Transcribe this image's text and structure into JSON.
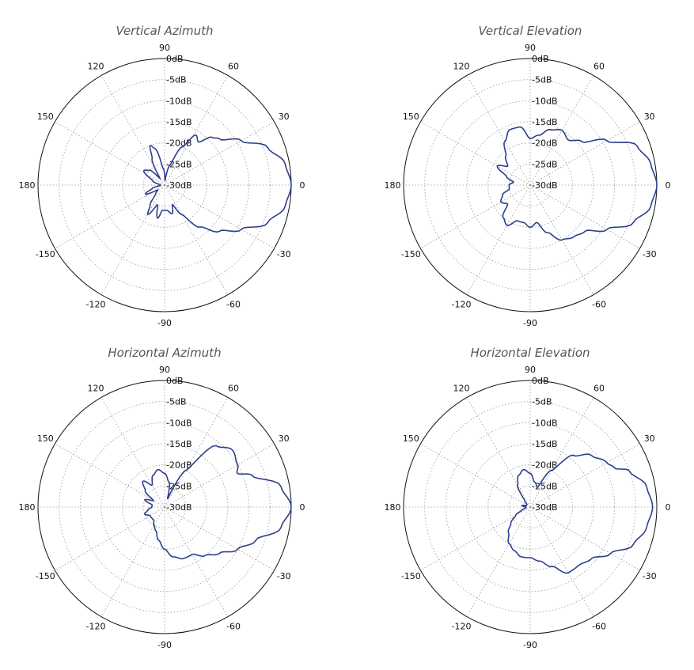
{
  "chart_data": [
    {
      "type": "polar",
      "title": "Vertical Azimuth",
      "angular_ticks": [
        "90",
        "60",
        "30",
        "0",
        "-30",
        "-60",
        "-90",
        "-120",
        "-150",
        "180",
        "150",
        "120"
      ],
      "radial_ticks": [
        "0dB",
        "-5dB",
        "-10dB",
        "-15dB",
        "-20dB",
        "-25dB",
        "-30dB"
      ],
      "rlim": [
        -30,
        0
      ],
      "grid": true,
      "series_color": "#2e3e8c",
      "pattern": [
        [
          0,
          0
        ],
        [
          10,
          -1
        ],
        [
          20,
          -4
        ],
        [
          30,
          -9
        ],
        [
          40,
          -13
        ],
        [
          45,
          -14
        ],
        [
          52,
          -17
        ],
        [
          58,
          -16
        ],
        [
          65,
          -20
        ],
        [
          75,
          -25
        ],
        [
          85,
          -29
        ],
        [
          95,
          -26
        ],
        [
          105,
          -21
        ],
        [
          110,
          -20
        ],
        [
          115,
          -23
        ],
        [
          125,
          -28
        ],
        [
          135,
          -25
        ],
        [
          145,
          -24
        ],
        [
          160,
          -27
        ],
        [
          175,
          -29
        ],
        [
          185,
          -29
        ],
        [
          195,
          -27
        ],
        [
          205,
          -25
        ],
        [
          215,
          -28
        ],
        [
          225,
          -27
        ],
        [
          235,
          -24
        ],
        [
          240,
          -22
        ],
        [
          250,
          -25
        ],
        [
          258,
          -22
        ],
        [
          265,
          -24
        ],
        [
          275,
          -24
        ],
        [
          285,
          -23
        ],
        [
          292,
          -25
        ],
        [
          300,
          -22
        ],
        [
          310,
          -17
        ],
        [
          320,
          -13
        ],
        [
          330,
          -9
        ],
        [
          340,
          -4
        ],
        [
          350,
          -1
        ],
        [
          360,
          0
        ]
      ]
    },
    {
      "type": "polar",
      "title": "Vertical Elevation",
      "angular_ticks": [
        "90",
        "60",
        "30",
        "0",
        "-30",
        "-60",
        "-90",
        "-120",
        "-150",
        "180",
        "150",
        "120"
      ],
      "radial_ticks": [
        "0dB",
        "-5dB",
        "-10dB",
        "-15dB",
        "-20dB",
        "-25dB",
        "-30dB"
      ],
      "rlim": [
        -30,
        0
      ],
      "grid": true,
      "series_color": "#2e3e8c",
      "pattern": [
        [
          0,
          0
        ],
        [
          10,
          -1
        ],
        [
          20,
          -3
        ],
        [
          30,
          -9
        ],
        [
          40,
          -14
        ],
        [
          50,
          -16
        ],
        [
          60,
          -15
        ],
        [
          70,
          -16
        ],
        [
          80,
          -18
        ],
        [
          90,
          -19
        ],
        [
          100,
          -16
        ],
        [
          110,
          -16
        ],
        [
          120,
          -18
        ],
        [
          130,
          -21
        ],
        [
          140,
          -23
        ],
        [
          150,
          -21
        ],
        [
          160,
          -24
        ],
        [
          170,
          -26
        ],
        [
          180,
          -25
        ],
        [
          190,
          -25
        ],
        [
          200,
          -23
        ],
        [
          210,
          -22
        ],
        [
          220,
          -23
        ],
        [
          230,
          -20
        ],
        [
          240,
          -19
        ],
        [
          250,
          -21
        ],
        [
          260,
          -21
        ],
        [
          270,
          -20
        ],
        [
          280,
          -21
        ],
        [
          290,
          -18
        ],
        [
          300,
          -15
        ],
        [
          310,
          -14
        ],
        [
          320,
          -13
        ],
        [
          330,
          -9
        ],
        [
          340,
          -4
        ],
        [
          350,
          -1
        ],
        [
          360,
          0
        ]
      ]
    },
    {
      "type": "polar",
      "title": "Horizontal Azimuth",
      "angular_ticks": [
        "90",
        "60",
        "30",
        "0",
        "-30",
        "-60",
        "-90",
        "-120",
        "-150",
        "180",
        "150",
        "120"
      ],
      "radial_ticks": [
        "0dB",
        "-5dB",
        "-10dB",
        "-15dB",
        "-20dB",
        "-25dB",
        "-30dB"
      ],
      "rlim": [
        -30,
        0
      ],
      "grid": true,
      "series_color": "#2e3e8c",
      "pattern": [
        [
          0,
          0
        ],
        [
          10,
          -2
        ],
        [
          20,
          -8
        ],
        [
          25,
          -11
        ],
        [
          30,
          -10
        ],
        [
          40,
          -9
        ],
        [
          50,
          -11
        ],
        [
          60,
          -20
        ],
        [
          70,
          -28
        ],
        [
          80,
          -24
        ],
        [
          90,
          -22
        ],
        [
          100,
          -21
        ],
        [
          110,
          -22
        ],
        [
          120,
          -24
        ],
        [
          130,
          -22
        ],
        [
          140,
          -24
        ],
        [
          150,
          -27
        ],
        [
          160,
          -25
        ],
        [
          170,
          -27
        ],
        [
          180,
          -27
        ],
        [
          190,
          -26
        ],
        [
          200,
          -25
        ],
        [
          210,
          -26
        ],
        [
          220,
          -26
        ],
        [
          230,
          -26
        ],
        [
          240,
          -25
        ],
        [
          250,
          -24
        ],
        [
          260,
          -22
        ],
        [
          270,
          -20
        ],
        [
          280,
          -18
        ],
        [
          290,
          -17
        ],
        [
          300,
          -17
        ],
        [
          310,
          -15
        ],
        [
          320,
          -13
        ],
        [
          330,
          -10
        ],
        [
          340,
          -7
        ],
        [
          350,
          -2
        ],
        [
          360,
          0
        ]
      ]
    },
    {
      "type": "polar",
      "title": "Horizontal Elevation",
      "angular_ticks": [
        "90",
        "60",
        "30",
        "0",
        "-30",
        "-60",
        "-90",
        "-120",
        "-150",
        "180",
        "150",
        "120"
      ],
      "radial_ticks": [
        "0dB",
        "-5dB",
        "-10dB",
        "-15dB",
        "-20dB",
        "-25dB",
        "-30dB"
      ],
      "rlim": [
        -30,
        0
      ],
      "grid": true,
      "series_color": "#2e3e8c",
      "pattern": [
        [
          0,
          -1
        ],
        [
          10,
          -2
        ],
        [
          20,
          -5
        ],
        [
          25,
          -8
        ],
        [
          30,
          -9
        ],
        [
          40,
          -11
        ],
        [
          50,
          -14
        ],
        [
          60,
          -20
        ],
        [
          70,
          -25
        ],
        [
          80,
          -24
        ],
        [
          90,
          -22
        ],
        [
          100,
          -21
        ],
        [
          110,
          -22
        ],
        [
          120,
          -24
        ],
        [
          130,
          -28
        ],
        [
          140,
          -29
        ],
        [
          150,
          -29
        ],
        [
          160,
          -29
        ],
        [
          170,
          -28
        ],
        [
          180,
          -29
        ],
        [
          190,
          -29
        ],
        [
          200,
          -28
        ],
        [
          210,
          -26
        ],
        [
          220,
          -24
        ],
        [
          230,
          -22
        ],
        [
          240,
          -20
        ],
        [
          250,
          -19
        ],
        [
          260,
          -18
        ],
        [
          270,
          -18
        ],
        [
          280,
          -17
        ],
        [
          290,
          -15
        ],
        [
          300,
          -12
        ],
        [
          310,
          -12
        ],
        [
          320,
          -11
        ],
        [
          330,
          -8
        ],
        [
          340,
          -4
        ],
        [
          350,
          -2
        ],
        [
          360,
          -1
        ]
      ]
    }
  ]
}
